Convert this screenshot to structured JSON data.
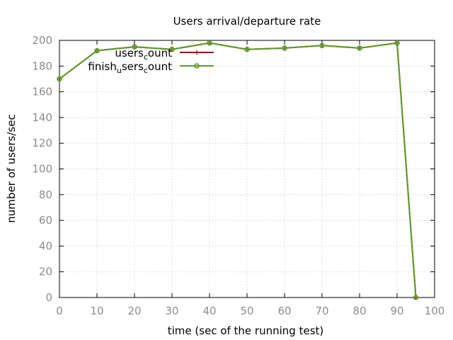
{
  "chart_data": {
    "type": "line",
    "title": "Users arrival/departure rate",
    "xlabel": "time (sec of the running test)",
    "ylabel": "number of users/sec",
    "xlim": [
      0,
      100
    ],
    "ylim": [
      0,
      200
    ],
    "xticks": [
      0,
      10,
      20,
      30,
      40,
      50,
      60,
      70,
      80,
      90,
      100
    ],
    "yticks": [
      0,
      20,
      40,
      60,
      80,
      100,
      120,
      140,
      160,
      180,
      200
    ],
    "grid": true,
    "legend_position": "top-left",
    "series": [
      {
        "name": "users_count",
        "legend_main": "users",
        "legend_sub": "c",
        "legend_tail": "ount",
        "color": "#8b1a1a",
        "marker": "plus",
        "x": [
          0,
          10,
          20,
          30,
          40,
          50,
          60,
          70,
          80,
          90,
          95
        ],
        "y": [
          170,
          192,
          195,
          193,
          198,
          193,
          194,
          196,
          194,
          198,
          0
        ]
      },
      {
        "name": "finish_users_count",
        "legend_main": "finish",
        "legend_sub": "u",
        "legend_tail": "sers",
        "legend_sub2": "c",
        "legend_tail2": "ount",
        "color": "#5e9c2a",
        "marker": "circle",
        "x": [
          0,
          10,
          20,
          30,
          40,
          50,
          60,
          70,
          80,
          90,
          95
        ],
        "y": [
          170,
          192,
          195,
          193,
          198,
          193,
          194,
          196,
          194,
          198,
          0
        ]
      }
    ]
  }
}
